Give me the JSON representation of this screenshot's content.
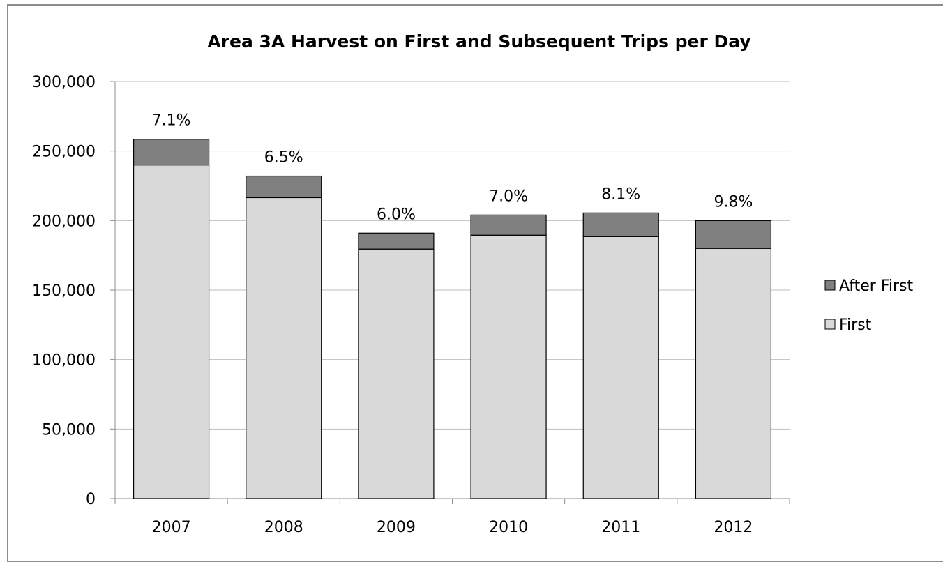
{
  "chart_data": {
    "type": "bar",
    "stacked": true,
    "title": "Area 3A Harvest on First and Subsequent Trips per Day",
    "xlabel": "",
    "ylabel": "",
    "categories": [
      "2007",
      "2008",
      "2009",
      "2010",
      "2011",
      "2012"
    ],
    "series": [
      {
        "name": "First",
        "values": [
          240000,
          216500,
          179500,
          189500,
          188500,
          180000
        ],
        "color": "#d9d9d9"
      },
      {
        "name": "After First",
        "values": [
          18500,
          15500,
          11500,
          14500,
          17000,
          20000
        ],
        "color": "#808080"
      }
    ],
    "data_labels": [
      "7.1%",
      "6.5%",
      "6.0%",
      "7.0%",
      "8.1%",
      "9.8%"
    ],
    "ylim": [
      0,
      300000
    ],
    "yticks": [
      0,
      50000,
      100000,
      150000,
      200000,
      250000,
      300000
    ],
    "ytick_labels": [
      "0",
      "50,000",
      "100,000",
      "150,000",
      "200,000",
      "250,000",
      "300,000"
    ],
    "grid": true,
    "legend": {
      "position": "right",
      "entries": [
        "After First",
        "First"
      ]
    },
    "colors": {
      "grid": "#bfbfbf",
      "axis": "#8c8c8c",
      "bar_outline": "#000000"
    }
  }
}
